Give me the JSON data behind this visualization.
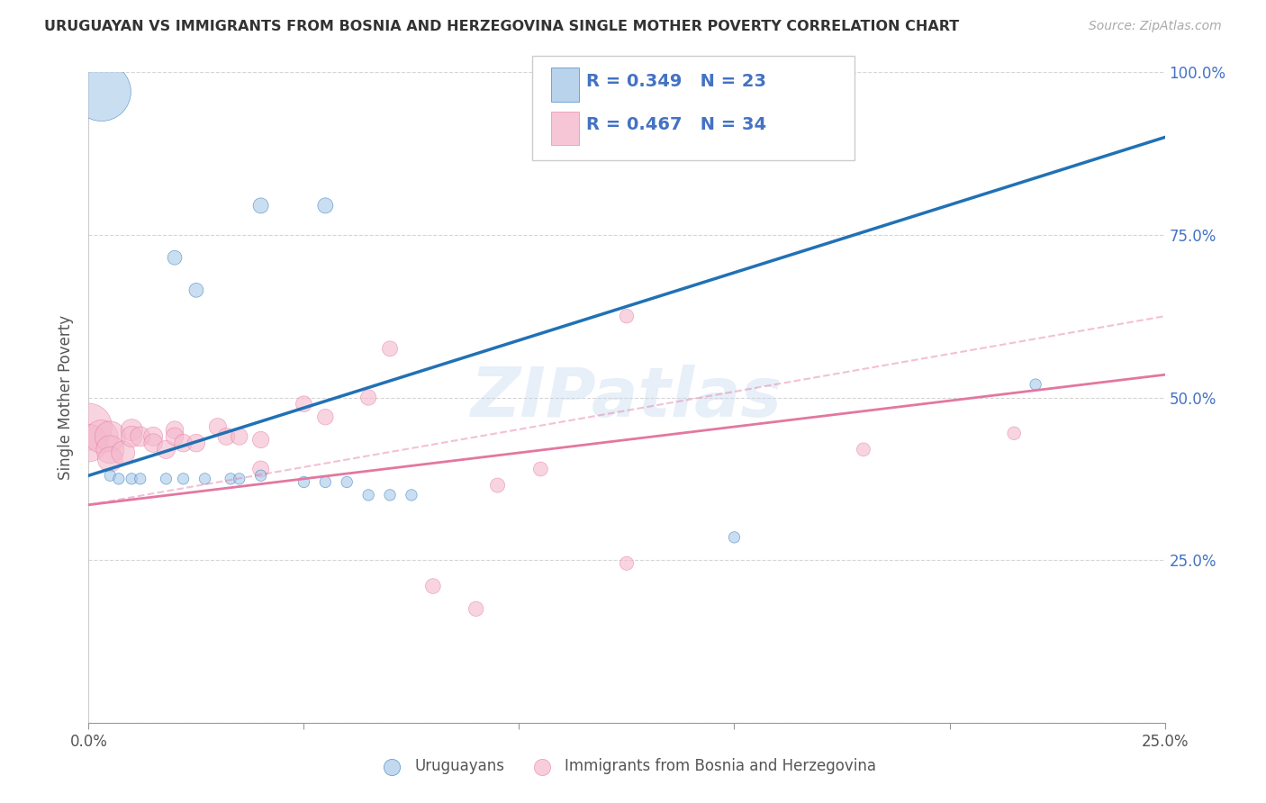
{
  "title": "URUGUAYAN VS IMMIGRANTS FROM BOSNIA AND HERZEGOVINA SINGLE MOTHER POVERTY CORRELATION CHART",
  "source": "Source: ZipAtlas.com",
  "ylabel": "Single Mother Poverty",
  "xlim": [
    0.0,
    0.25
  ],
  "ylim": [
    0.0,
    1.0
  ],
  "watermark": "ZIPatlas",
  "blue_line": [
    0.0,
    0.38,
    0.25,
    0.9
  ],
  "pink_line": [
    0.0,
    0.335,
    0.25,
    0.535
  ],
  "pink_dash": [
    0.0,
    0.335,
    0.25,
    0.625
  ],
  "blue_line_color": "#2171b5",
  "pink_line_color": "#e377a0",
  "blue_color": "#a8c8e8",
  "pink_color": "#f4b8cc",
  "blue_scatter": [
    [
      0.003,
      0.97
    ],
    [
      0.04,
      0.795
    ],
    [
      0.055,
      0.795
    ],
    [
      0.02,
      0.715
    ],
    [
      0.025,
      0.665
    ],
    [
      0.005,
      0.38
    ],
    [
      0.007,
      0.375
    ],
    [
      0.01,
      0.375
    ],
    [
      0.012,
      0.375
    ],
    [
      0.018,
      0.375
    ],
    [
      0.022,
      0.375
    ],
    [
      0.027,
      0.375
    ],
    [
      0.033,
      0.375
    ],
    [
      0.035,
      0.375
    ],
    [
      0.04,
      0.38
    ],
    [
      0.05,
      0.37
    ],
    [
      0.055,
      0.37
    ],
    [
      0.06,
      0.37
    ],
    [
      0.065,
      0.35
    ],
    [
      0.07,
      0.35
    ],
    [
      0.075,
      0.35
    ],
    [
      0.15,
      0.285
    ],
    [
      0.22,
      0.52
    ]
  ],
  "pink_scatter": [
    [
      0.0,
      0.455
    ],
    [
      0.0,
      0.43
    ],
    [
      0.003,
      0.44
    ],
    [
      0.005,
      0.44
    ],
    [
      0.005,
      0.42
    ],
    [
      0.005,
      0.405
    ],
    [
      0.008,
      0.415
    ],
    [
      0.01,
      0.45
    ],
    [
      0.01,
      0.44
    ],
    [
      0.012,
      0.44
    ],
    [
      0.015,
      0.44
    ],
    [
      0.015,
      0.43
    ],
    [
      0.018,
      0.42
    ],
    [
      0.02,
      0.45
    ],
    [
      0.02,
      0.44
    ],
    [
      0.022,
      0.43
    ],
    [
      0.025,
      0.43
    ],
    [
      0.03,
      0.455
    ],
    [
      0.032,
      0.44
    ],
    [
      0.035,
      0.44
    ],
    [
      0.04,
      0.435
    ],
    [
      0.04,
      0.39
    ],
    [
      0.05,
      0.49
    ],
    [
      0.055,
      0.47
    ],
    [
      0.065,
      0.5
    ],
    [
      0.07,
      0.575
    ],
    [
      0.08,
      0.21
    ],
    [
      0.09,
      0.175
    ],
    [
      0.095,
      0.365
    ],
    [
      0.105,
      0.39
    ],
    [
      0.125,
      0.625
    ],
    [
      0.125,
      0.245
    ],
    [
      0.18,
      0.42
    ],
    [
      0.215,
      0.445
    ]
  ],
  "blue_scatter_sizes": [
    2200,
    150,
    150,
    130,
    130,
    80,
    80,
    80,
    80,
    80,
    80,
    80,
    80,
    80,
    80,
    80,
    80,
    80,
    80,
    80,
    80,
    80,
    80
  ],
  "pink_scatter_sizes": [
    1400,
    900,
    700,
    600,
    500,
    400,
    350,
    300,
    280,
    250,
    230,
    220,
    210,
    200,
    200,
    200,
    200,
    190,
    185,
    180,
    175,
    170,
    165,
    160,
    155,
    150,
    145,
    140,
    135,
    130,
    125,
    120,
    115,
    110
  ]
}
